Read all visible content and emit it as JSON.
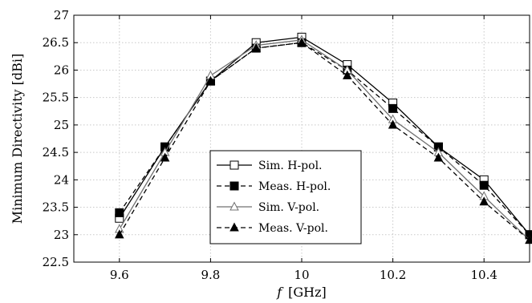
{
  "chart_data": {
    "type": "line",
    "xlabel_var": "f",
    "xlabel_unit": "[GHz]",
    "ylabel": "Minimum Directivity [dBi]",
    "xlim": [
      9.5,
      10.5
    ],
    "ylim": [
      22.5,
      27
    ],
    "xticks": [
      9.6,
      9.8,
      10,
      10.2,
      10.4
    ],
    "xtick_labels": [
      "9.6",
      "9.8",
      "10",
      "10.2",
      "10.4"
    ],
    "yticks": [
      22.5,
      23,
      23.5,
      24,
      24.5,
      25,
      25.5,
      26,
      26.5,
      27
    ],
    "ytick_labels": [
      "22.5",
      "23",
      "23.5",
      "24",
      "24.5",
      "25",
      "25.5",
      "26",
      "26.5",
      "27"
    ],
    "grid": true,
    "legend_position": "bottom-center",
    "x": [
      9.6,
      9.7,
      9.8,
      9.9,
      10.0,
      10.1,
      10.2,
      10.3,
      10.4,
      10.5
    ],
    "series": [
      {
        "name": "Sim. H-pol.",
        "marker": "square-open",
        "dash": "solid",
        "values": [
          23.3,
          24.6,
          25.8,
          26.5,
          26.6,
          26.1,
          25.4,
          24.6,
          24.0,
          23.0
        ]
      },
      {
        "name": "Meas. H-pol.",
        "marker": "square-filled",
        "dash": "dashed",
        "values": [
          23.4,
          24.6,
          25.8,
          26.4,
          26.5,
          26.0,
          25.3,
          24.6,
          23.9,
          23.0
        ]
      },
      {
        "name": "Sim. V-pol.",
        "marker": "triangle-open",
        "dash": "solid",
        "values": [
          23.1,
          24.5,
          25.9,
          26.45,
          26.55,
          26.0,
          25.1,
          24.5,
          23.7,
          22.9
        ]
      },
      {
        "name": "Meas. V-pol.",
        "marker": "triangle-filled",
        "dash": "dashed",
        "values": [
          23.0,
          24.4,
          25.8,
          26.4,
          26.5,
          25.9,
          25.0,
          24.4,
          23.6,
          22.9
        ]
      }
    ]
  },
  "colors": {
    "line": "#000000",
    "grid": "#c8c8c8",
    "sim_v_line": "#707070"
  }
}
